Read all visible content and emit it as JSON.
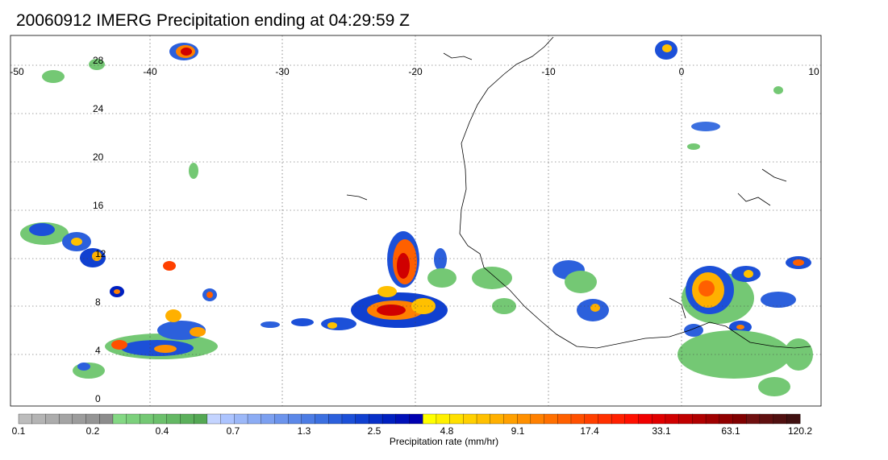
{
  "title": "20060912 IMERG Precipitation ending at 04:29:59 Z",
  "map": {
    "lon_labels": [
      "-50",
      "-40",
      "-30",
      "-20",
      "-10",
      "0",
      "10"
    ],
    "lat_labels": [
      "28",
      "24",
      "20",
      "16",
      "12",
      "8",
      "4",
      "0"
    ],
    "lon_range": [
      -50,
      10
    ],
    "lat_range": [
      -0.5,
      30
    ],
    "grid": true,
    "grid_style": "dotted"
  },
  "colorbar": {
    "caption": "Precipitation rate (mm/hr)",
    "tick_labels": [
      "0.1",
      "0.2",
      "0.4",
      "0.7",
      "1.3",
      "2.5",
      "4.8",
      "9.1",
      "17.4",
      "33.1",
      "63.1",
      "120.2"
    ],
    "colors": [
      "#bcbcbc",
      "#b4b4b4",
      "#acacac",
      "#a4a4a4",
      "#9c9c9c",
      "#949494",
      "#8c8c8c",
      "#84d884",
      "#7cd07c",
      "#74c874",
      "#6cc06c",
      "#64b864",
      "#5cb05c",
      "#54a854",
      "#c4d4ff",
      "#acc4ff",
      "#9cb8f8",
      "#8cacf4",
      "#7ca0f0",
      "#6c94ec",
      "#5c88e8",
      "#4c7ce4",
      "#3c70e0",
      "#2c60dc",
      "#1c50d8",
      "#1040d0",
      "#0830c8",
      "#0020c0",
      "#0010b8",
      "#0000b0",
      "#ffff00",
      "#fff000",
      "#ffe000",
      "#ffd000",
      "#ffc000",
      "#ffb000",
      "#ffa000",
      "#ff9000",
      "#ff8000",
      "#ff7000",
      "#ff6000",
      "#ff5000",
      "#ff4000",
      "#ff3000",
      "#ff2000",
      "#ff1000",
      "#f00000",
      "#e00000",
      "#d00000",
      "#c00000",
      "#b00000",
      "#a00000",
      "#900000",
      "#800000",
      "#701010",
      "#601010",
      "#501010",
      "#401010"
    ]
  }
}
